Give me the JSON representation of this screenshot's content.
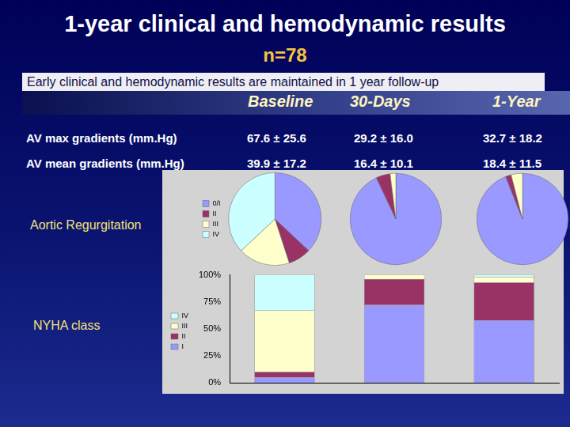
{
  "title": "1-year clinical and hemodynamic results",
  "subtitle": "n=78",
  "note": "Early clinical and hemodynamic results are maintained in 1 year follow-up",
  "table": {
    "columns": [
      "Baseline",
      "30-Days",
      "1-Year"
    ],
    "rows": [
      {
        "label": "AV max gradients (mm.Hg)",
        "cells": [
          "67.6 ± 25.6",
          "29.2 ± 16.0",
          "32.7 ± 18.2"
        ]
      },
      {
        "label": "AV mean gradients (mm.Hg)",
        "cells": [
          "39.9 ± 17.2",
          "16.4 ± 10.1",
          "18.4 ± 11.5"
        ]
      }
    ]
  },
  "chart_data": [
    {
      "type": "pie",
      "title": "Aortic Regurgitation",
      "categories": [
        "0/I",
        "II",
        "III",
        "IV"
      ],
      "values": [
        37,
        8,
        18,
        37
      ],
      "colors": [
        "#9999ff",
        "#993366",
        "#ffffcc",
        "#ccffff"
      ],
      "legend": "left"
    },
    {
      "type": "pie",
      "categories": [
        "0/I",
        "II",
        "III",
        "IV"
      ],
      "values": [
        93,
        5,
        2,
        0
      ],
      "colors": [
        "#9999ff",
        "#993366",
        "#ffffcc",
        "#ccffff"
      ]
    },
    {
      "type": "pie",
      "categories": [
        "0/I",
        "II",
        "III",
        "IV"
      ],
      "values": [
        94,
        2,
        4,
        0
      ],
      "colors": [
        "#9999ff",
        "#993366",
        "#ffffcc",
        "#ccffff"
      ]
    },
    {
      "type": "bar",
      "title": "NYHA class",
      "categories": [
        null,
        null,
        null
      ],
      "series": [
        {
          "name": "I",
          "color": "#9999ff",
          "values": [
            5,
            72,
            58
          ]
        },
        {
          "name": "II",
          "color": "#993366",
          "values": [
            5,
            24,
            35
          ]
        },
        {
          "name": "III",
          "color": "#ffffcc",
          "values": [
            57,
            4,
            5
          ]
        },
        {
          "name": "IV",
          "color": "#ccffff",
          "values": [
            33,
            0,
            2
          ]
        }
      ],
      "stacked": true,
      "ylim": [
        0,
        100
      ],
      "yticks": [
        {
          "value": 0,
          "label": "0%"
        },
        {
          "value": 25,
          "label": "25%"
        },
        {
          "value": 50,
          "label": "50%"
        },
        {
          "value": 75,
          "label": "75%"
        },
        {
          "value": 100,
          "label": "100%"
        }
      ],
      "grid": false,
      "legend": "left",
      "tick_labels": "y"
    }
  ]
}
